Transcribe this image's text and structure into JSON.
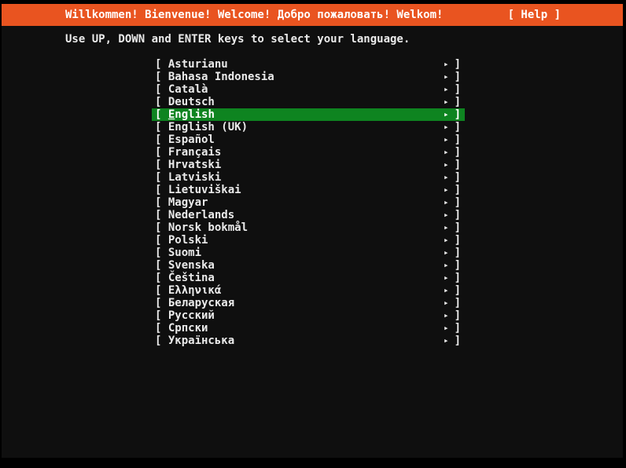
{
  "topbar": {
    "title": "Willkommen! Bienvenue! Welcome! Добро пожаловать! Welkom!",
    "help_label": "[ Help ]"
  },
  "instruction": "Use UP, DOWN and ENTER keys to select your language.",
  "list": {
    "bracket_open": "[",
    "bracket_close": "]",
    "arrow": "▸",
    "selected_index": 4,
    "languages": [
      "Asturianu",
      "Bahasa Indonesia",
      "Català",
      "Deutsch",
      "English",
      "English (UK)",
      "Español",
      "Français",
      "Hrvatski",
      "Latviski",
      "Lietuviškai",
      "Magyar",
      "Nederlands",
      "Norsk bokmål",
      "Polski",
      "Suomi",
      "Svenska",
      "Čeština",
      "Ελληνικά",
      "Беларуская",
      "Русский",
      "Српски",
      "Українська"
    ]
  },
  "colors": {
    "accent_orange": "#E95420",
    "highlight_green": "#0E8420",
    "screen_background": "#0F0F0F",
    "frame": "#000000",
    "text": "#EAEAEA"
  }
}
